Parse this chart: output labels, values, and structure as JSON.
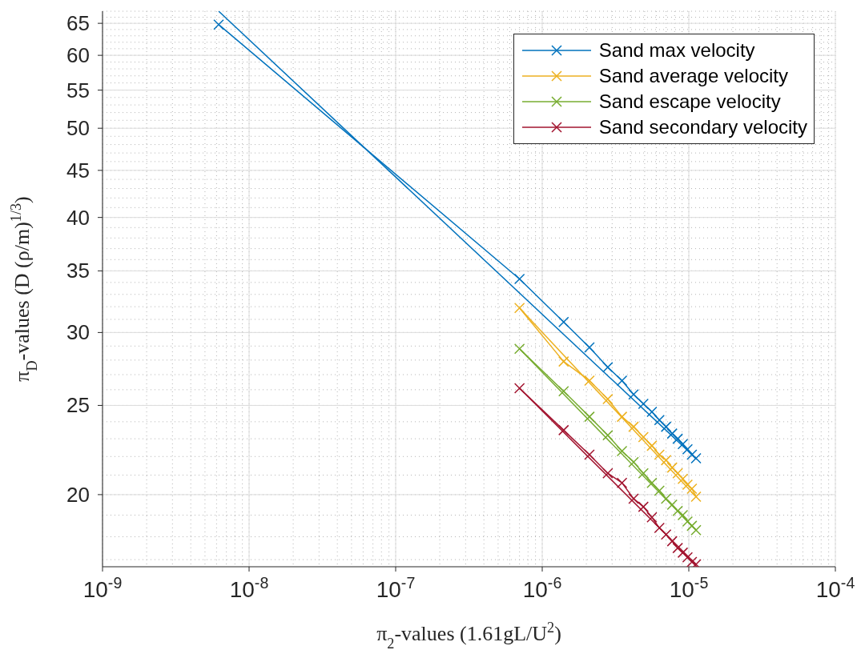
{
  "chart_data": {
    "type": "line",
    "xlabel": "π$_{2}$-values (1.61gL/U$^{2}$)",
    "ylabel": "π$_{D}$-values (D (ρ/m)$^{1/3}$)",
    "log": "xy",
    "xlim": [
      1e-09,
      0.0001
    ],
    "xticks": [
      {
        "value": 1e-09,
        "label": "10$^{-9}$"
      },
      {
        "value": 1e-08,
        "label": "10$^{-8}$"
      },
      {
        "value": 1e-07,
        "label": "10$^{-7}$"
      },
      {
        "value": 1e-06,
        "label": "10$^{-6}$"
      },
      {
        "value": 1e-05,
        "label": "10$^{-5}$"
      },
      {
        "value": 0.0001,
        "label": "10$^{-4}$"
      }
    ],
    "ylim": [
      16.7,
      67
    ],
    "yticks": [
      20,
      25,
      30,
      35,
      40,
      45,
      50,
      55,
      60,
      65
    ],
    "grid": true,
    "legend": "top right",
    "marker": "cross",
    "line_style": "solid",
    "series": [
      {
        "name": "Sand max velocity",
        "color": "#0072bd",
        "x": [
          6.2e-09,
          7e-07,
          1.4e-06,
          2.1e-06,
          2.8e-06,
          3.5e-06,
          4.2e-06,
          4.9e-06,
          5.6e-06,
          6.3e-06,
          7e-06,
          7.7e-06,
          8.4e-06,
          9.1e-06,
          9.8e-06,
          1.05e-05,
          1.12e-05
        ],
        "values": [
          64.8,
          34.3,
          30.8,
          28.9,
          27.5,
          26.6,
          25.7,
          25.1,
          24.6,
          24.1,
          23.7,
          23.3,
          23.0,
          22.7,
          22.4,
          22.1,
          21.9
        ]
      },
      {
        "name": "Sand average velocity",
        "color": "#edb120",
        "x": [
          7e-07,
          1.4e-06,
          2.1e-06,
          2.8e-06,
          3.5e-06,
          4.2e-06,
          4.9e-06,
          5.6e-06,
          6.3e-06,
          7e-06,
          7.7e-06,
          8.4e-06,
          9.1e-06,
          9.8e-06,
          1.05e-05,
          1.12e-05
        ],
        "values": [
          31.9,
          27.9,
          26.6,
          25.4,
          24.3,
          23.7,
          23.1,
          22.6,
          22.1,
          21.8,
          21.4,
          21.1,
          20.8,
          20.5,
          20.3,
          19.9
        ]
      },
      {
        "name": "Sand escape velocity",
        "color": "#77ac30",
        "x": [
          7e-07,
          1.4e-06,
          2.1e-06,
          2.8e-06,
          3.5e-06,
          4.2e-06,
          4.9e-06,
          5.6e-06,
          6.3e-06,
          7e-06,
          7.7e-06,
          8.4e-06,
          9.1e-06,
          9.8e-06,
          1.05e-05,
          1.12e-05
        ],
        "values": [
          28.8,
          25.9,
          24.3,
          23.2,
          22.3,
          21.7,
          21.1,
          20.6,
          20.2,
          19.8,
          19.5,
          19.2,
          19.0,
          18.7,
          18.5,
          18.3
        ]
      },
      {
        "name": "Sand secondary velocity",
        "color": "#a2142f",
        "x": [
          7e-07,
          1.4e-06,
          2.1e-06,
          2.8e-06,
          3.5e-06,
          4.2e-06,
          4.9e-06,
          5.6e-06,
          6.3e-06,
          7e-06,
          7.7e-06,
          8.4e-06,
          9.1e-06,
          9.8e-06,
          1.05e-05,
          1.12e-05
        ],
        "values": [
          26.1,
          23.5,
          22.1,
          21.1,
          20.6,
          19.8,
          19.4,
          18.9,
          18.4,
          18.1,
          17.8,
          17.5,
          17.3,
          17.1,
          16.9,
          16.8
        ]
      },
      {
        "type": "line",
        "marker": "none",
        "color": "#0072bd",
        "x": [
          6.2e-09,
          1.12e-05
        ],
        "values": [
          67.0,
          21.9
        ]
      },
      {
        "type": "line",
        "marker": "none",
        "color": "#edb120",
        "x": [
          7e-07,
          1.12e-05
        ],
        "values": [
          31.9,
          19.9
        ]
      },
      {
        "type": "line",
        "marker": "none",
        "color": "#77ac30",
        "x": [
          7e-07,
          1.12e-05
        ],
        "values": [
          28.8,
          18.3
        ]
      },
      {
        "type": "line",
        "marker": "none",
        "color": "#a2142f",
        "x": [
          7e-07,
          1.12e-05
        ],
        "values": [
          26.1,
          16.8
        ]
      }
    ]
  }
}
